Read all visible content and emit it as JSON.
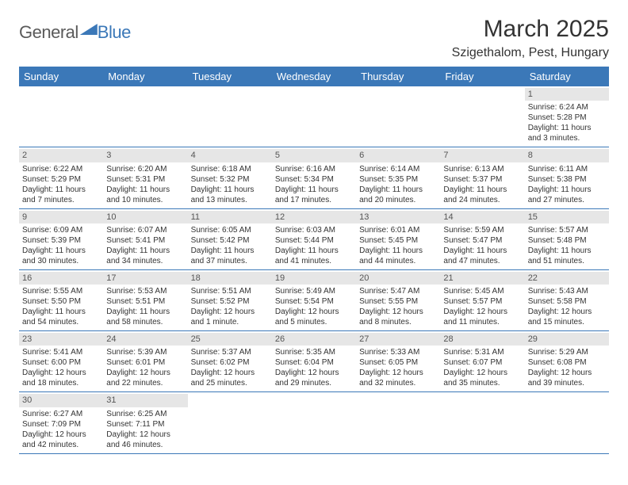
{
  "brand": {
    "part1": "General",
    "part2": "Blue"
  },
  "title": "March 2025",
  "location": "Szigethalom, Pest, Hungary",
  "weekdays": [
    "Sunday",
    "Monday",
    "Tuesday",
    "Wednesday",
    "Thursday",
    "Friday",
    "Saturday"
  ],
  "colors": {
    "header_bg": "#3b78b8",
    "header_text": "#ffffff",
    "daynum_bg": "#e6e6e6",
    "rule": "#3b78b8",
    "body_text": "#333333"
  },
  "leading_blanks": 6,
  "days": [
    {
      "n": 1,
      "sunrise": "6:24 AM",
      "sunset": "5:28 PM",
      "daylight": "11 hours and 3 minutes."
    },
    {
      "n": 2,
      "sunrise": "6:22 AM",
      "sunset": "5:29 PM",
      "daylight": "11 hours and 7 minutes."
    },
    {
      "n": 3,
      "sunrise": "6:20 AM",
      "sunset": "5:31 PM",
      "daylight": "11 hours and 10 minutes."
    },
    {
      "n": 4,
      "sunrise": "6:18 AM",
      "sunset": "5:32 PM",
      "daylight": "11 hours and 13 minutes."
    },
    {
      "n": 5,
      "sunrise": "6:16 AM",
      "sunset": "5:34 PM",
      "daylight": "11 hours and 17 minutes."
    },
    {
      "n": 6,
      "sunrise": "6:14 AM",
      "sunset": "5:35 PM",
      "daylight": "11 hours and 20 minutes."
    },
    {
      "n": 7,
      "sunrise": "6:13 AM",
      "sunset": "5:37 PM",
      "daylight": "11 hours and 24 minutes."
    },
    {
      "n": 8,
      "sunrise": "6:11 AM",
      "sunset": "5:38 PM",
      "daylight": "11 hours and 27 minutes."
    },
    {
      "n": 9,
      "sunrise": "6:09 AM",
      "sunset": "5:39 PM",
      "daylight": "11 hours and 30 minutes."
    },
    {
      "n": 10,
      "sunrise": "6:07 AM",
      "sunset": "5:41 PM",
      "daylight": "11 hours and 34 minutes."
    },
    {
      "n": 11,
      "sunrise": "6:05 AM",
      "sunset": "5:42 PM",
      "daylight": "11 hours and 37 minutes."
    },
    {
      "n": 12,
      "sunrise": "6:03 AM",
      "sunset": "5:44 PM",
      "daylight": "11 hours and 41 minutes."
    },
    {
      "n": 13,
      "sunrise": "6:01 AM",
      "sunset": "5:45 PM",
      "daylight": "11 hours and 44 minutes."
    },
    {
      "n": 14,
      "sunrise": "5:59 AM",
      "sunset": "5:47 PM",
      "daylight": "11 hours and 47 minutes."
    },
    {
      "n": 15,
      "sunrise": "5:57 AM",
      "sunset": "5:48 PM",
      "daylight": "11 hours and 51 minutes."
    },
    {
      "n": 16,
      "sunrise": "5:55 AM",
      "sunset": "5:50 PM",
      "daylight": "11 hours and 54 minutes."
    },
    {
      "n": 17,
      "sunrise": "5:53 AM",
      "sunset": "5:51 PM",
      "daylight": "11 hours and 58 minutes."
    },
    {
      "n": 18,
      "sunrise": "5:51 AM",
      "sunset": "5:52 PM",
      "daylight": "12 hours and 1 minute."
    },
    {
      "n": 19,
      "sunrise": "5:49 AM",
      "sunset": "5:54 PM",
      "daylight": "12 hours and 5 minutes."
    },
    {
      "n": 20,
      "sunrise": "5:47 AM",
      "sunset": "5:55 PM",
      "daylight": "12 hours and 8 minutes."
    },
    {
      "n": 21,
      "sunrise": "5:45 AM",
      "sunset": "5:57 PM",
      "daylight": "12 hours and 11 minutes."
    },
    {
      "n": 22,
      "sunrise": "5:43 AM",
      "sunset": "5:58 PM",
      "daylight": "12 hours and 15 minutes."
    },
    {
      "n": 23,
      "sunrise": "5:41 AM",
      "sunset": "6:00 PM",
      "daylight": "12 hours and 18 minutes."
    },
    {
      "n": 24,
      "sunrise": "5:39 AM",
      "sunset": "6:01 PM",
      "daylight": "12 hours and 22 minutes."
    },
    {
      "n": 25,
      "sunrise": "5:37 AM",
      "sunset": "6:02 PM",
      "daylight": "12 hours and 25 minutes."
    },
    {
      "n": 26,
      "sunrise": "5:35 AM",
      "sunset": "6:04 PM",
      "daylight": "12 hours and 29 minutes."
    },
    {
      "n": 27,
      "sunrise": "5:33 AM",
      "sunset": "6:05 PM",
      "daylight": "12 hours and 32 minutes."
    },
    {
      "n": 28,
      "sunrise": "5:31 AM",
      "sunset": "6:07 PM",
      "daylight": "12 hours and 35 minutes."
    },
    {
      "n": 29,
      "sunrise": "5:29 AM",
      "sunset": "6:08 PM",
      "daylight": "12 hours and 39 minutes."
    },
    {
      "n": 30,
      "sunrise": "6:27 AM",
      "sunset": "7:09 PM",
      "daylight": "12 hours and 42 minutes."
    },
    {
      "n": 31,
      "sunrise": "6:25 AM",
      "sunset": "7:11 PM",
      "daylight": "12 hours and 46 minutes."
    }
  ],
  "labels": {
    "sunrise": "Sunrise:",
    "sunset": "Sunset:",
    "daylight": "Daylight:"
  }
}
